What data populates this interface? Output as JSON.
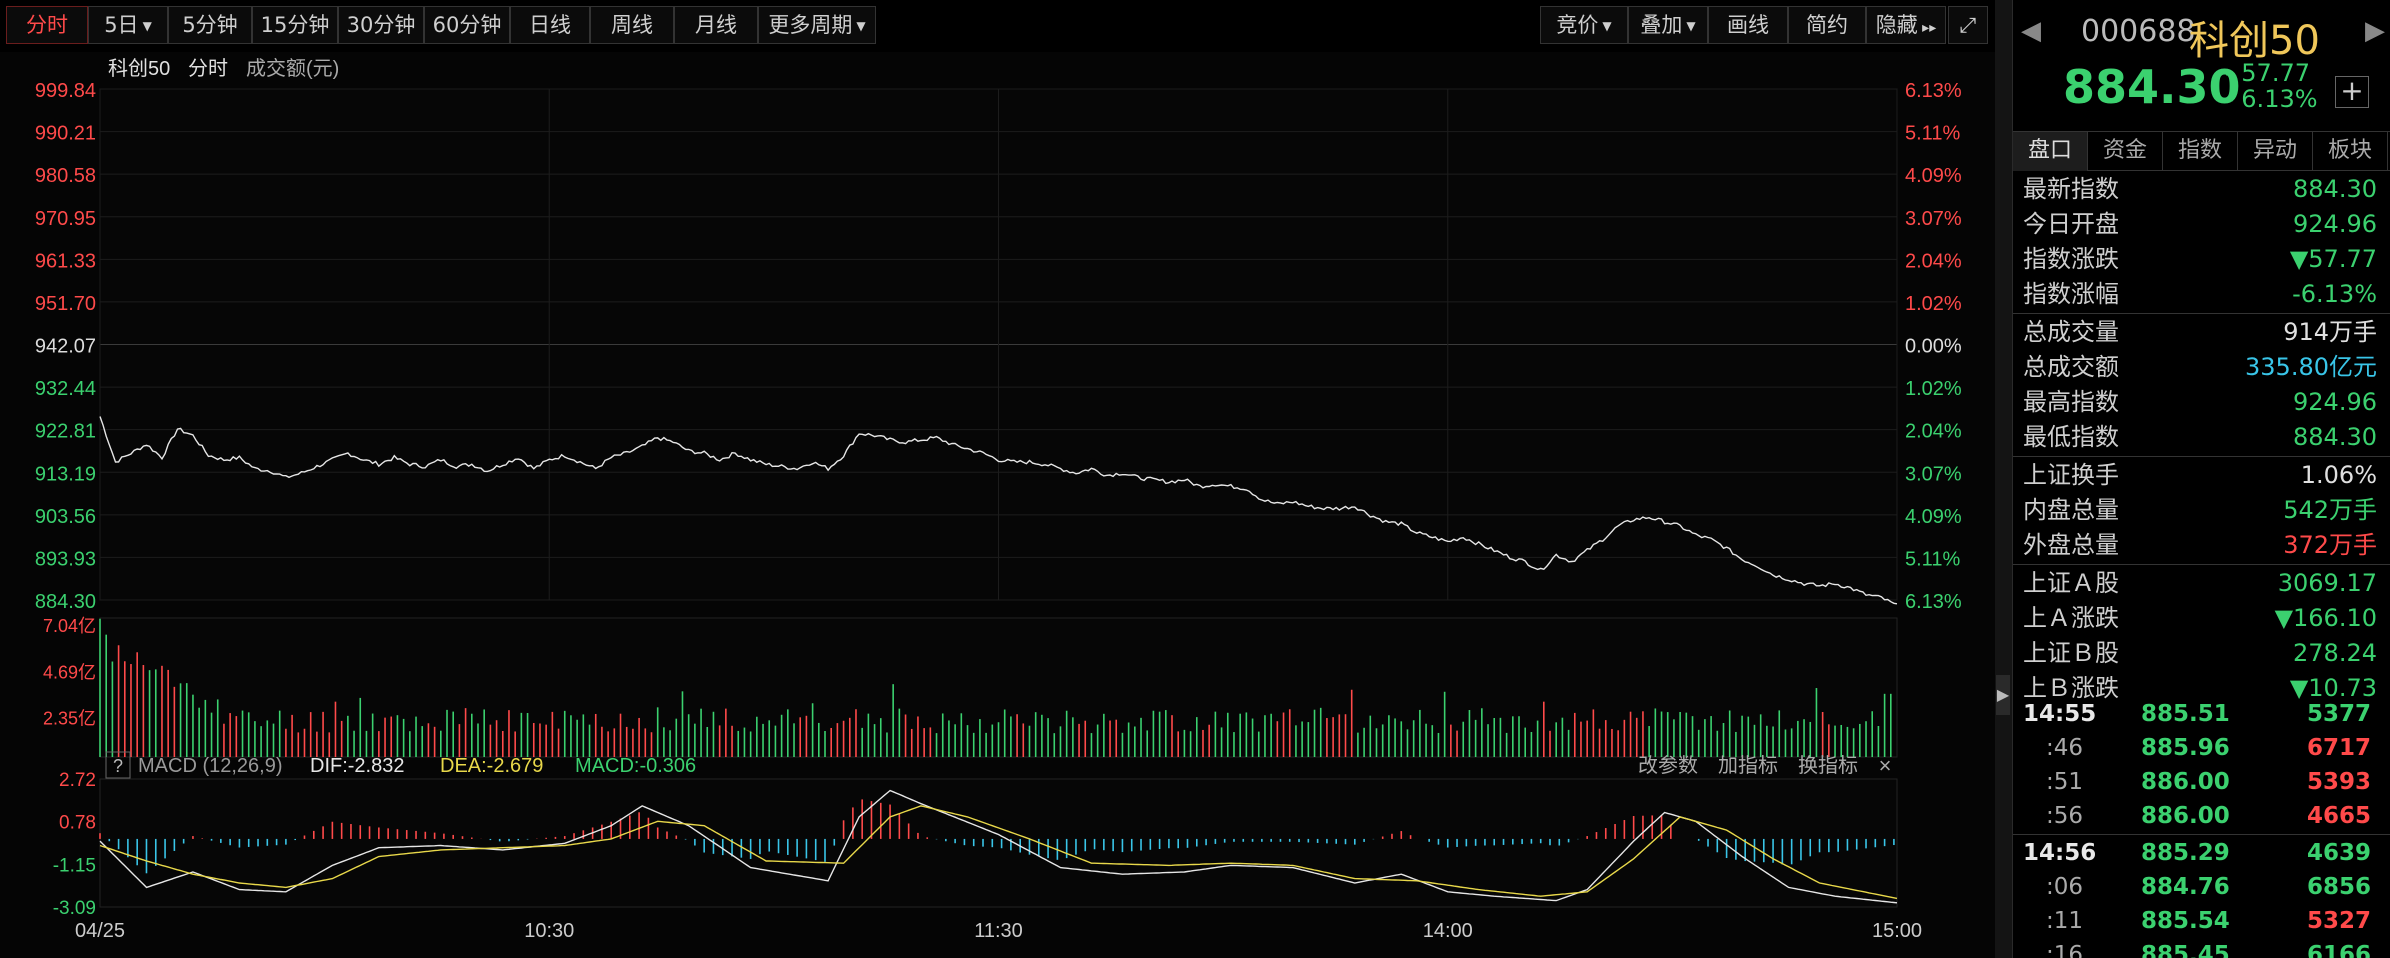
{
  "toolbar": {
    "periods": [
      {
        "label": "分时",
        "active": true,
        "caret": false
      },
      {
        "label": "5日",
        "active": false,
        "caret": true
      },
      {
        "label": "5分钟",
        "active": false,
        "caret": false
      },
      {
        "label": "15分钟",
        "active": false,
        "caret": false
      },
      {
        "label": "30分钟",
        "active": false,
        "caret": false
      },
      {
        "label": "60分钟",
        "active": false,
        "caret": false
      },
      {
        "label": "日线",
        "active": false,
        "caret": false
      },
      {
        "label": "周线",
        "active": false,
        "caret": false
      },
      {
        "label": "月线",
        "active": false,
        "caret": false
      },
      {
        "label": "更多周期",
        "active": false,
        "caret": true
      }
    ],
    "right_buttons": [
      {
        "label": "竞价",
        "caret": true
      },
      {
        "label": "叠加",
        "caret": true
      },
      {
        "label": "画线",
        "caret": false
      },
      {
        "label": "简约",
        "caret": false
      },
      {
        "label": "隐藏",
        "caret": false
      }
    ]
  },
  "chart_header": {
    "name": "科创50",
    "mode": "分时",
    "metric": "成交额(元)"
  },
  "chart_data": [
    {
      "type": "line",
      "name": "price",
      "y_ticks_left": [
        "999.84",
        "990.21",
        "980.58",
        "970.95",
        "961.33",
        "951.70",
        "942.07",
        "932.44",
        "922.81",
        "913.19",
        "903.56",
        "893.93",
        "884.30"
      ],
      "y_ticks_right": [
        "6.13%",
        "5.11%",
        "4.09%",
        "3.07%",
        "2.04%",
        "1.02%",
        "0.00%",
        "1.02%",
        "2.04%",
        "3.07%",
        "4.09%",
        "5.11%",
        "6.13%"
      ],
      "ylim": [
        884.3,
        999.84
      ],
      "x_labels": [
        "04/25",
        "10:30",
        "11:30",
        "14:00",
        "15:00"
      ],
      "anchors": [
        [
          0,
          925.8
        ],
        [
          5,
          915.5
        ],
        [
          10,
          917.5
        ],
        [
          15,
          919.5
        ],
        [
          20,
          916.5
        ],
        [
          25,
          923
        ],
        [
          30,
          921.5
        ],
        [
          35,
          917
        ],
        [
          40,
          916
        ],
        [
          45,
          916.5
        ],
        [
          50,
          914
        ],
        [
          55,
          913.5
        ],
        [
          60,
          912
        ],
        [
          65,
          913
        ],
        [
          70,
          914.5
        ],
        [
          75,
          916
        ],
        [
          80,
          917.5
        ],
        [
          85,
          916
        ],
        [
          90,
          915
        ],
        [
          95,
          916.5
        ],
        [
          100,
          915
        ],
        [
          105,
          914.5
        ],
        [
          110,
          916
        ],
        [
          115,
          914.5
        ],
        [
          120,
          915
        ],
        [
          125,
          913.5
        ],
        [
          130,
          915
        ],
        [
          135,
          916.5
        ],
        [
          140,
          914
        ],
        [
          145,
          916
        ],
        [
          150,
          917
        ],
        [
          155,
          915.5
        ],
        [
          160,
          914
        ],
        [
          165,
          916.5
        ],
        [
          170,
          917.5
        ],
        [
          175,
          919
        ],
        [
          180,
          921
        ],
        [
          185,
          920
        ],
        [
          190,
          918
        ],
        [
          195,
          917.5
        ],
        [
          200,
          916
        ],
        [
          205,
          917.5
        ],
        [
          210,
          916
        ],
        [
          215,
          915
        ],
        [
          220,
          914.5
        ],
        [
          225,
          914
        ],
        [
          230,
          915.5
        ],
        [
          235,
          914
        ],
        [
          240,
          917
        ],
        [
          245,
          922
        ],
        [
          250,
          921.5
        ],
        [
          255,
          920.5
        ],
        [
          260,
          920
        ],
        [
          265,
          920.5
        ],
        [
          270,
          921
        ],
        [
          275,
          919.5
        ],
        [
          280,
          918.5
        ],
        [
          285,
          917.5
        ],
        [
          290,
          916
        ],
        [
          295,
          915.5
        ],
        [
          300,
          915.5
        ],
        [
          305,
          915
        ],
        [
          310,
          914
        ],
        [
          315,
          913
        ],
        [
          320,
          914
        ],
        [
          325,
          912.5
        ],
        [
          330,
          913
        ],
        [
          335,
          912
        ],
        [
          340,
          911.5
        ],
        [
          345,
          911
        ],
        [
          350,
          911.5
        ],
        [
          355,
          910
        ],
        [
          360,
          910.5
        ],
        [
          365,
          910
        ],
        [
          370,
          909.5
        ],
        [
          375,
          907
        ],
        [
          380,
          906
        ],
        [
          385,
          906.5
        ],
        [
          390,
          905.5
        ],
        [
          395,
          905
        ],
        [
          400,
          905
        ],
        [
          405,
          905.5
        ],
        [
          410,
          903.5
        ],
        [
          415,
          902
        ],
        [
          420,
          901.5
        ],
        [
          425,
          899.5
        ],
        [
          430,
          898.5
        ],
        [
          435,
          897.5
        ],
        [
          440,
          898.5
        ],
        [
          445,
          897
        ],
        [
          450,
          895.5
        ],
        [
          455,
          894
        ],
        [
          460,
          893
        ],
        [
          465,
          891
        ],
        [
          470,
          894.5
        ],
        [
          475,
          893
        ],
        [
          480,
          895.5
        ],
        [
          485,
          898
        ],
        [
          490,
          901
        ],
        [
          495,
          902.5
        ],
        [
          500,
          903
        ],
        [
          505,
          902
        ],
        [
          510,
          901
        ],
        [
          515,
          899
        ],
        [
          520,
          898
        ],
        [
          525,
          896
        ],
        [
          530,
          893.5
        ],
        [
          535,
          892
        ],
        [
          540,
          890
        ],
        [
          545,
          889
        ],
        [
          550,
          888
        ],
        [
          555,
          887.5
        ],
        [
          560,
          888
        ],
        [
          565,
          887
        ],
        [
          570,
          885.5
        ],
        [
          575,
          884.8
        ],
        [
          580,
          883
        ]
      ],
      "total_minutes": 580
    },
    {
      "type": "bar",
      "name": "volume",
      "y_ticks": [
        "7.04亿",
        "4.69亿",
        "2.35亿"
      ],
      "unit": "亿",
      "ylim": [
        0,
        7.04
      ]
    },
    {
      "type": "line",
      "name": "MACD",
      "series": [
        {
          "name": "DIF"
        },
        {
          "name": "DEA"
        },
        {
          "name": "MACD"
        }
      ],
      "y_ticks": [
        "2.72",
        "0.78",
        "-1.15",
        "-3.09"
      ],
      "ylim": [
        -3.09,
        2.72
      ],
      "dif_anchors": [
        [
          0,
          -0.1
        ],
        [
          15,
          -2.2
        ],
        [
          30,
          -1.5
        ],
        [
          45,
          -2.3
        ],
        [
          60,
          -2.4
        ],
        [
          75,
          -1.2
        ],
        [
          90,
          -0.4
        ],
        [
          110,
          -0.3
        ],
        [
          130,
          -0.5
        ],
        [
          150,
          -0.2
        ],
        [
          165,
          0.6
        ],
        [
          175,
          1.5
        ],
        [
          190,
          0.6
        ],
        [
          210,
          -1.3
        ],
        [
          235,
          -1.9
        ],
        [
          245,
          1.0
        ],
        [
          255,
          2.2
        ],
        [
          265,
          1.6
        ],
        [
          290,
          0.2
        ],
        [
          310,
          -1.3
        ],
        [
          330,
          -1.6
        ],
        [
          350,
          -1.5
        ],
        [
          365,
          -1.2
        ],
        [
          385,
          -1.3
        ],
        [
          405,
          -2.0
        ],
        [
          420,
          -1.6
        ],
        [
          435,
          -2.4
        ],
        [
          450,
          -2.6
        ],
        [
          470,
          -2.8
        ],
        [
          480,
          -2.3
        ],
        [
          495,
          -0.1
        ],
        [
          505,
          1.2
        ],
        [
          515,
          0.8
        ],
        [
          530,
          -0.8
        ],
        [
          545,
          -2.2
        ],
        [
          560,
          -2.6
        ],
        [
          580,
          -2.9
        ]
      ],
      "dea_anchors": [
        [
          0,
          -0.3
        ],
        [
          15,
          -1.0
        ],
        [
          30,
          -1.6
        ],
        [
          45,
          -2.0
        ],
        [
          60,
          -2.2
        ],
        [
          75,
          -1.8
        ],
        [
          90,
          -0.8
        ],
        [
          110,
          -0.5
        ],
        [
          130,
          -0.4
        ],
        [
          150,
          -0.3
        ],
        [
          165,
          0.0
        ],
        [
          180,
          0.8
        ],
        [
          195,
          0.6
        ],
        [
          215,
          -1.0
        ],
        [
          240,
          -1.1
        ],
        [
          255,
          1.0
        ],
        [
          265,
          1.5
        ],
        [
          280,
          1.0
        ],
        [
          300,
          0.0
        ],
        [
          320,
          -1.1
        ],
        [
          345,
          -1.2
        ],
        [
          365,
          -1.1
        ],
        [
          385,
          -1.2
        ],
        [
          405,
          -1.8
        ],
        [
          425,
          -1.9
        ],
        [
          445,
          -2.3
        ],
        [
          465,
          -2.6
        ],
        [
          480,
          -2.4
        ],
        [
          495,
          -0.9
        ],
        [
          510,
          1.0
        ],
        [
          525,
          0.4
        ],
        [
          540,
          -0.9
        ],
        [
          555,
          -2.0
        ],
        [
          580,
          -2.7
        ]
      ]
    }
  ],
  "macd_header": {
    "title": "MACD (12,26,9)",
    "dif": "DIF:-2.832",
    "dea": "DEA:-2.679",
    "macd": "MACD:-0.306",
    "actions": [
      "改参数",
      "加指标",
      "换指标"
    ]
  },
  "quote": {
    "code": "000688",
    "name": "科创50",
    "price": "884.30",
    "change": "- 57.77",
    "change_pct": "- 6.13%",
    "tabs": [
      "盘口",
      "资金",
      "指数",
      "异动",
      "板块"
    ]
  },
  "stats": [
    {
      "label": "最新指数",
      "value": "884.30",
      "style": "green"
    },
    {
      "label": "今日开盘",
      "value": "924.96",
      "style": "green"
    },
    {
      "label": "指数涨跌",
      "value": "▼57.77",
      "style": "green"
    },
    {
      "label": "指数涨幅",
      "value": "-6.13%",
      "style": "green"
    },
    {
      "label": "总成交量",
      "value": "914万手",
      "style": "white"
    },
    {
      "label": "总成交额",
      "value": "335.80亿元",
      "style": "cyan"
    },
    {
      "label": "最高指数",
      "value": "924.96",
      "style": "green"
    },
    {
      "label": "最低指数",
      "value": "884.30",
      "style": "green"
    },
    {
      "label": "上证换手",
      "value": "1.06%",
      "style": "white"
    },
    {
      "label": "内盘总量",
      "value": "542万手",
      "style": "green"
    },
    {
      "label": "外盘总量",
      "value": "372万手",
      "style": "red"
    },
    {
      "label": "上证Ａ股",
      "value": "3069.17",
      "style": "green"
    },
    {
      "label": "上Ａ涨跌",
      "value": "▼166.10",
      "style": "green"
    },
    {
      "label": "上证Ｂ股",
      "value": "278.24",
      "style": "green"
    },
    {
      "label": "上Ｂ涨跌",
      "value": "▼10.73",
      "style": "green"
    }
  ],
  "ticks": [
    {
      "time": "14:55",
      "bold": true,
      "price": "885.51",
      "vol": "5377",
      "color": "g"
    },
    {
      "time": ":46",
      "bold": false,
      "price": "885.96",
      "vol": "6717",
      "color": "r"
    },
    {
      "time": ":51",
      "bold": false,
      "price": "886.00",
      "vol": "5393",
      "color": "r"
    },
    {
      "time": ":56",
      "bold": false,
      "price": "886.00",
      "vol": "4665",
      "color": "r"
    },
    {
      "time": "14:56",
      "bold": true,
      "price": "885.29",
      "vol": "4639",
      "color": "g"
    },
    {
      "time": ":06",
      "bold": false,
      "price": "884.76",
      "vol": "6856",
      "color": "g"
    },
    {
      "time": ":11",
      "bold": false,
      "price": "885.54",
      "vol": "5327",
      "color": "r"
    },
    {
      "time": ":16",
      "bold": false,
      "price": "885.45",
      "vol": "6166",
      "color": "g"
    }
  ],
  "colors": {
    "up": "#ff4a4a",
    "down": "#3bd16f",
    "line": "#e6e6e6",
    "dea": "#e8d84a",
    "cyan": "#39c5e8"
  }
}
